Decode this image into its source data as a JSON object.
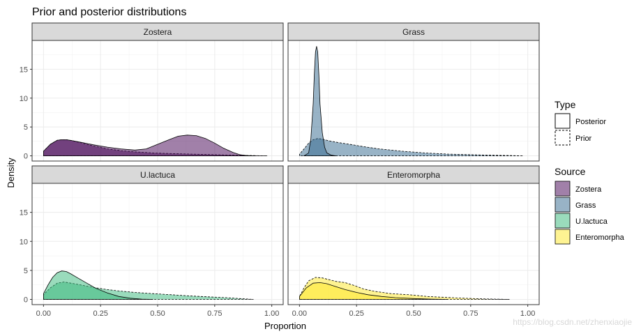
{
  "chart_data": {
    "type": "area",
    "title": "Prior and posterior distributions",
    "xlabel": "Proportion",
    "ylabel": "Density",
    "x_ticks": [
      "0.00",
      "0.25",
      "0.50",
      "0.75",
      "1.00"
    ],
    "x_tick_values": [
      0,
      0.25,
      0.5,
      0.75,
      1.0
    ],
    "y_ticks": [
      "0",
      "5",
      "10",
      "15"
    ],
    "y_tick_values": [
      0,
      5,
      10,
      15
    ],
    "xlim": [
      -0.05,
      1.05
    ],
    "ylim": [
      -0.9,
      20
    ],
    "grid": true,
    "facets": [
      {
        "name": "Zostera",
        "color": "#440154",
        "posterior": [
          [
            0,
            0.8
          ],
          [
            0.03,
            2.0
          ],
          [
            0.06,
            2.7
          ],
          [
            0.08,
            2.8
          ],
          [
            0.1,
            2.8
          ],
          [
            0.13,
            2.6
          ],
          [
            0.17,
            2.3
          ],
          [
            0.22,
            1.9
          ],
          [
            0.28,
            1.5
          ],
          [
            0.34,
            1.2
          ],
          [
            0.4,
            1.0
          ],
          [
            0.45,
            1.2
          ],
          [
            0.5,
            2.0
          ],
          [
            0.55,
            2.8
          ],
          [
            0.59,
            3.4
          ],
          [
            0.63,
            3.6
          ],
          [
            0.67,
            3.5
          ],
          [
            0.71,
            3.0
          ],
          [
            0.75,
            2.2
          ],
          [
            0.79,
            1.3
          ],
          [
            0.83,
            0.6
          ],
          [
            0.86,
            0.2
          ],
          [
            0.89,
            0.05
          ],
          [
            0.93,
            0
          ]
        ],
        "prior": [
          [
            0,
            0.8
          ],
          [
            0.03,
            2.0
          ],
          [
            0.06,
            2.7
          ],
          [
            0.08,
            2.8
          ],
          [
            0.1,
            2.8
          ],
          [
            0.13,
            2.6
          ],
          [
            0.17,
            2.2
          ],
          [
            0.22,
            1.7
          ],
          [
            0.28,
            1.2
          ],
          [
            0.34,
            0.9
          ],
          [
            0.4,
            0.7
          ],
          [
            0.48,
            0.5
          ],
          [
            0.55,
            0.4
          ],
          [
            0.65,
            0.3
          ],
          [
            0.75,
            0.2
          ],
          [
            0.85,
            0.1
          ],
          [
            0.92,
            0.04
          ],
          [
            0.98,
            0
          ]
        ]
      },
      {
        "name": "Grass",
        "color": "#31688E",
        "posterior": [
          [
            0.02,
            0
          ],
          [
            0.04,
            0.5
          ],
          [
            0.05,
            3
          ],
          [
            0.06,
            9
          ],
          [
            0.065,
            14
          ],
          [
            0.07,
            18
          ],
          [
            0.075,
            19
          ],
          [
            0.08,
            18
          ],
          [
            0.085,
            14
          ],
          [
            0.09,
            9
          ],
          [
            0.1,
            4
          ],
          [
            0.11,
            1.5
          ],
          [
            0.12,
            0.5
          ],
          [
            0.14,
            0.1
          ],
          [
            0.16,
            0
          ]
        ],
        "prior": [
          [
            0,
            0.3
          ],
          [
            0.02,
            1.2
          ],
          [
            0.04,
            2.2
          ],
          [
            0.06,
            2.8
          ],
          [
            0.08,
            3.0
          ],
          [
            0.1,
            2.9
          ],
          [
            0.13,
            2.6
          ],
          [
            0.17,
            2.3
          ],
          [
            0.22,
            2.0
          ],
          [
            0.28,
            1.6
          ],
          [
            0.35,
            1.2
          ],
          [
            0.45,
            0.8
          ],
          [
            0.55,
            0.5
          ],
          [
            0.65,
            0.3
          ],
          [
            0.75,
            0.2
          ],
          [
            0.85,
            0.1
          ],
          [
            0.92,
            0.05
          ],
          [
            0.98,
            0
          ]
        ]
      },
      {
        "name": "U.lactuca",
        "color": "#35B779",
        "posterior": [
          [
            0,
            1.0
          ],
          [
            0.02,
            2.5
          ],
          [
            0.04,
            3.8
          ],
          [
            0.06,
            4.6
          ],
          [
            0.08,
            4.9
          ],
          [
            0.1,
            4.8
          ],
          [
            0.12,
            4.4
          ],
          [
            0.15,
            3.7
          ],
          [
            0.19,
            2.8
          ],
          [
            0.23,
            1.9
          ],
          [
            0.28,
            1.1
          ],
          [
            0.33,
            0.5
          ],
          [
            0.38,
            0.2
          ],
          [
            0.43,
            0.05
          ],
          [
            0.48,
            0
          ]
        ],
        "prior": [
          [
            0,
            0.8
          ],
          [
            0.03,
            2.0
          ],
          [
            0.06,
            2.8
          ],
          [
            0.09,
            3.0
          ],
          [
            0.12,
            2.8
          ],
          [
            0.15,
            2.6
          ],
          [
            0.2,
            2.2
          ],
          [
            0.26,
            1.8
          ],
          [
            0.32,
            1.5
          ],
          [
            0.4,
            1.2
          ],
          [
            0.48,
            1.0
          ],
          [
            0.56,
            0.8
          ],
          [
            0.64,
            0.6
          ],
          [
            0.72,
            0.45
          ],
          [
            0.8,
            0.3
          ],
          [
            0.86,
            0.15
          ],
          [
            0.9,
            0.05
          ],
          [
            0.92,
            0
          ]
        ]
      },
      {
        "name": "Enteromorpha",
        "color": "#FDE725",
        "posterior": [
          [
            0,
            0.5
          ],
          [
            0.03,
            2.0
          ],
          [
            0.06,
            2.8
          ],
          [
            0.09,
            2.9
          ],
          [
            0.12,
            2.7
          ],
          [
            0.16,
            2.2
          ],
          [
            0.2,
            1.7
          ],
          [
            0.25,
            1.2
          ],
          [
            0.3,
            0.8
          ],
          [
            0.36,
            0.5
          ],
          [
            0.42,
            0.3
          ],
          [
            0.5,
            0.15
          ],
          [
            0.58,
            0.05
          ],
          [
            0.65,
            0
          ]
        ],
        "prior": [
          [
            0,
            0.5
          ],
          [
            0.02,
            2.0
          ],
          [
            0.04,
            3.2
          ],
          [
            0.07,
            3.8
          ],
          [
            0.1,
            3.7
          ],
          [
            0.13,
            3.4
          ],
          [
            0.16,
            3.1
          ],
          [
            0.2,
            2.9
          ],
          [
            0.24,
            2.4
          ],
          [
            0.28,
            1.8
          ],
          [
            0.33,
            1.4
          ],
          [
            0.4,
            1.0
          ],
          [
            0.48,
            0.8
          ],
          [
            0.56,
            0.5
          ],
          [
            0.64,
            0.35
          ],
          [
            0.72,
            0.2
          ],
          [
            0.8,
            0.1
          ],
          [
            0.86,
            0.05
          ],
          [
            0.92,
            0
          ]
        ]
      }
    ],
    "legend": {
      "type_title": "Type",
      "type_items": [
        {
          "label": "Posterior",
          "linetype": "solid"
        },
        {
          "label": "Prior",
          "linetype": "dashed"
        }
      ],
      "source_title": "Source",
      "source_items": [
        {
          "label": "Zostera",
          "color": "#440154"
        },
        {
          "label": "Grass",
          "color": "#31688E"
        },
        {
          "label": "U.lactuca",
          "color": "#35B779"
        },
        {
          "label": "Enteromorpha",
          "color": "#FDE725"
        }
      ],
      "position": "right"
    }
  },
  "watermark": "https://blog.csdn.net/zhenxiaojie"
}
